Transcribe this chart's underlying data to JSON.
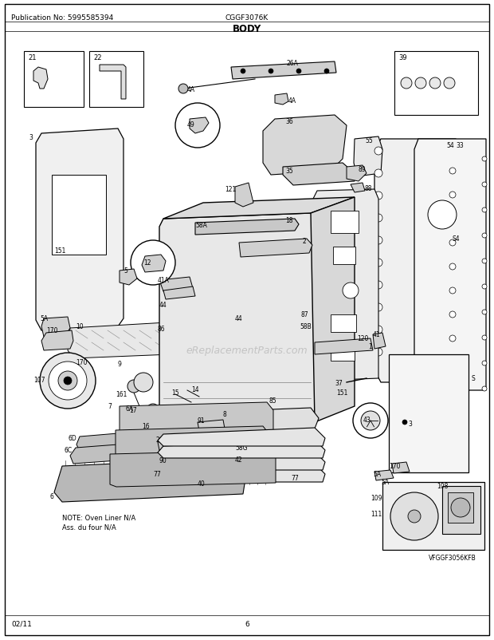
{
  "title": "BODY",
  "pub_no_label": "Publication No: 5995585394",
  "model_label": "CGGF3076K",
  "date_label": "02/11",
  "page_label": "6",
  "bg_color": "#ffffff",
  "fig_width": 6.2,
  "fig_height": 8.03,
  "dpi": 100,
  "watermark": "eReplacementParts.com",
  "note_line1": "NOTE: Oven Liner N/A",
  "note_line2": "Ass. du four N/A",
  "vfggf_label": "VFGGF3056KFB",
  "header_fontsize": 7,
  "title_fontsize": 9
}
